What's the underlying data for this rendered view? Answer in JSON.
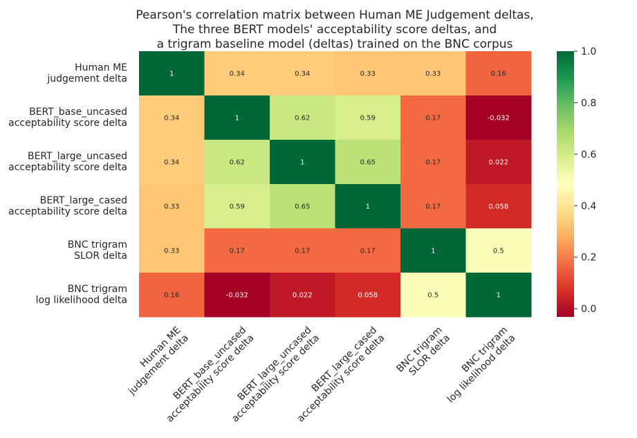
{
  "chart_data": {
    "type": "heatmap",
    "title_lines": [
      "Pearson's correlation matrix between Human ME Judgement deltas,",
      "The three BERT models' acceptability score deltas, and",
      "a trigram baseline model (deltas) trained on the BNC corpus"
    ],
    "row_labels": [
      [
        "Human ME",
        "judgement delta"
      ],
      [
        "BERT_base_uncased",
        "acceptability score delta"
      ],
      [
        "BERT_large_uncased",
        "acceptability score delta"
      ],
      [
        "BERT_large_cased",
        "acceptability score delta"
      ],
      [
        "BNC trigram",
        "SLOR delta"
      ],
      [
        "BNC trigram",
        "log likelihood delta"
      ]
    ],
    "col_labels": [
      [
        "Human ME",
        "judgement delta"
      ],
      [
        "BERT_base_uncased",
        "acceptability score delta"
      ],
      [
        "BERT_large_uncased",
        "acceptability score delta"
      ],
      [
        "BERT_large_cased",
        "acceptability score delta"
      ],
      [
        "BNC trigram",
        "SLOR delta"
      ],
      [
        "BNC trigram",
        "log likelihood delta"
      ]
    ],
    "values": [
      [
        1,
        0.34,
        0.34,
        0.33,
        0.33,
        0.16
      ],
      [
        0.34,
        1,
        0.62,
        0.59,
        0.17,
        -0.032
      ],
      [
        0.34,
        0.62,
        1,
        0.65,
        0.17,
        0.022
      ],
      [
        0.33,
        0.59,
        0.65,
        1,
        0.17,
        0.058
      ],
      [
        0.33,
        0.17,
        0.17,
        0.17,
        1,
        0.5
      ],
      [
        0.16,
        -0.032,
        0.022,
        0.058,
        0.5,
        1
      ]
    ],
    "annotations": [
      [
        "1",
        "0.34",
        "0.34",
        "0.33",
        "0.33",
        "0.16"
      ],
      [
        "0.34",
        "1",
        "0.62",
        "0.59",
        "0.17",
        "-0.032"
      ],
      [
        "0.34",
        "0.62",
        "1",
        "0.65",
        "0.17",
        "0.022"
      ],
      [
        "0.33",
        "0.59",
        "0.65",
        "1",
        "0.17",
        "0.058"
      ],
      [
        "0.33",
        "0.17",
        "0.17",
        "0.17",
        "1",
        "0.5"
      ],
      [
        "0.16",
        "-0.032",
        "0.022",
        "0.058",
        "0.5",
        "1"
      ]
    ],
    "colormap": "RdYlGn",
    "colorbar": {
      "range": [
        -0.032,
        1.0
      ],
      "ticks": [
        0.0,
        0.2,
        0.4,
        0.6,
        0.8,
        1.0
      ],
      "tick_labels": [
        "0.0",
        "0.2",
        "0.4",
        "0.6",
        "0.8",
        "1.0"
      ]
    },
    "grid": false,
    "legend": "colorbar-right"
  }
}
